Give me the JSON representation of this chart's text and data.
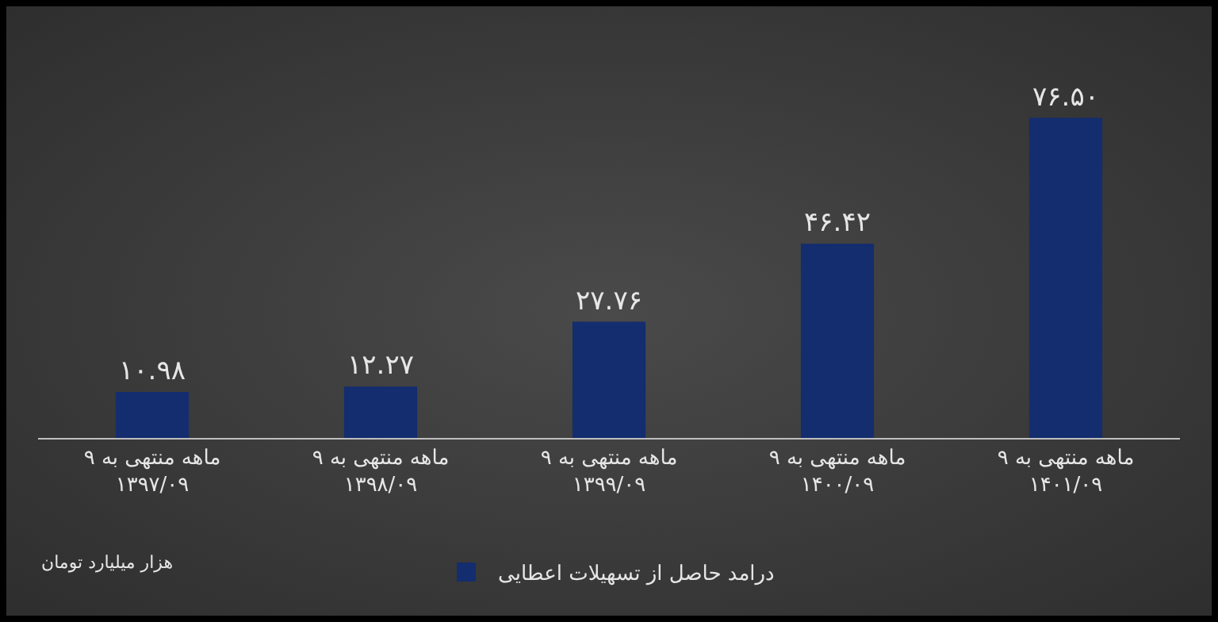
{
  "chart_data": {
    "type": "bar",
    "categories": [
      "۹ ماهه منتهی به\n۱۳۹۷/۰۹",
      "۹ ماهه منتهی به\n۱۳۹۸/۰۹",
      "۹ ماهه منتهی به\n۱۳۹۹/۰۹",
      "۹ ماهه منتهی به\n۱۴۰۰/۰۹",
      "۹ ماهه منتهی به\n۱۴۰۱/۰۹"
    ],
    "series": [
      {
        "name": "درامد حاصل از تسهیلات اعطایی",
        "color": "#132d6e",
        "values": [
          10.98,
          12.27,
          27.76,
          46.42,
          76.5
        ],
        "value_labels": [
          "۱۰.۹۸",
          "۱۲.۲۷",
          "۲۷.۷۶",
          "۴۶.۴۲",
          "۷۶.۵۰"
        ]
      }
    ],
    "annotations": [
      "هزار میلیارد تومان"
    ],
    "legend": "bottom",
    "grid": false
  }
}
